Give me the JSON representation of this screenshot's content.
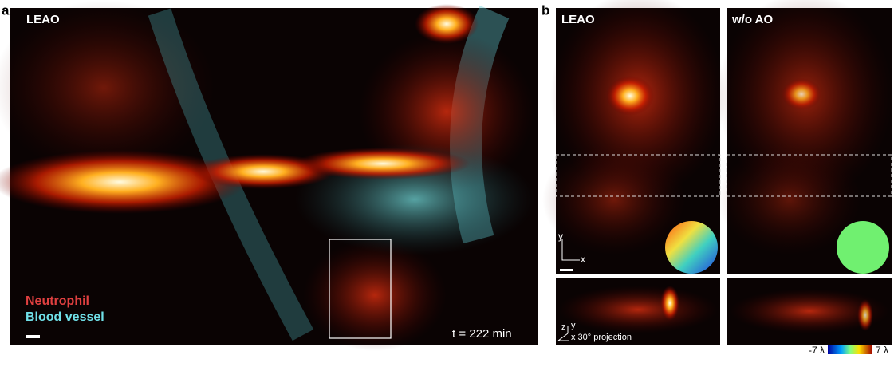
{
  "panel_a": {
    "label": "a",
    "title": "LEAO",
    "legend": [
      "Neutrophil",
      "Blood vessel"
    ],
    "time": "t = 222 min"
  },
  "panel_b": {
    "label": "b",
    "columns": [
      {
        "title": "LEAO"
      },
      {
        "title": "w/o AO"
      }
    ],
    "axes_xy": [
      "y",
      "x"
    ],
    "axes_projection": [
      "z",
      "y",
      "x 30° projection"
    ],
    "colorbar": {
      "min_label": "-7 λ",
      "max_label": "7 λ"
    }
  }
}
